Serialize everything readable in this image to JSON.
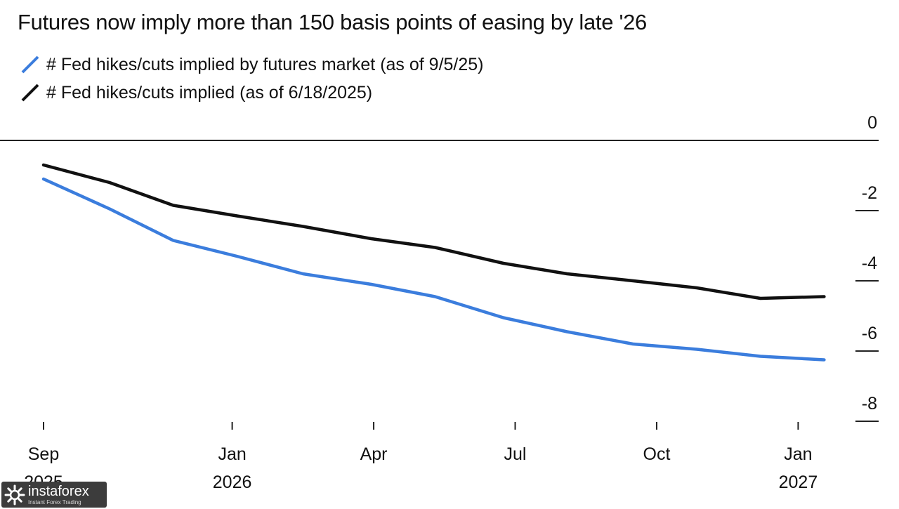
{
  "chart_data": {
    "type": "line",
    "title": "Futures now imply more than 150 basis points of easing by late '26",
    "xlabel": "",
    "ylabel": "",
    "ylim": [
      -8,
      0
    ],
    "yticks": [
      {
        "value": 0,
        "label": "0"
      },
      {
        "value": -2,
        "label": "-2"
      },
      {
        "value": -4,
        "label": "-4"
      },
      {
        "value": -6,
        "label": "-6"
      },
      {
        "value": -8,
        "label": "-8"
      }
    ],
    "x_range": [
      0,
      16.5
    ],
    "xticks": [
      {
        "value": 0,
        "month": "Sep",
        "year": "2025"
      },
      {
        "value": 4,
        "month": "Jan",
        "year": "2026"
      },
      {
        "value": 7,
        "month": "Apr",
        "year": ""
      },
      {
        "value": 10,
        "month": "Jul",
        "year": ""
      },
      {
        "value": 13,
        "month": "Oct",
        "year": ""
      },
      {
        "value": 16,
        "month": "Jan",
        "year": "2027"
      }
    ],
    "series": [
      {
        "name": "# Fed hikes/cuts implied by futures market (as of 9/5/25)",
        "color": "#3b7ddd",
        "points": [
          [
            0,
            -1.1
          ],
          [
            1.4,
            -1.95
          ],
          [
            2.75,
            -2.85
          ],
          [
            4.1,
            -3.3
          ],
          [
            5.5,
            -3.8
          ],
          [
            6.95,
            -4.1
          ],
          [
            8.3,
            -4.45
          ],
          [
            9.75,
            -5.05
          ],
          [
            11.1,
            -5.45
          ],
          [
            12.5,
            -5.8
          ],
          [
            13.85,
            -5.95
          ],
          [
            15.2,
            -6.15
          ],
          [
            16.55,
            -6.25
          ]
        ]
      },
      {
        "name": "# Fed hikes/cuts implied (as of 6/18/2025)",
        "color": "#111111",
        "points": [
          [
            0,
            -0.7
          ],
          [
            1.4,
            -1.2
          ],
          [
            2.75,
            -1.85
          ],
          [
            4.1,
            -2.15
          ],
          [
            5.5,
            -2.45
          ],
          [
            6.95,
            -2.8
          ],
          [
            8.3,
            -3.05
          ],
          [
            9.75,
            -3.5
          ],
          [
            11.1,
            -3.8
          ],
          [
            12.5,
            -4.0
          ],
          [
            13.85,
            -4.2
          ],
          [
            15.2,
            -4.5
          ],
          [
            16.55,
            -4.45
          ]
        ]
      }
    ],
    "legend_position": "top-left"
  },
  "watermark": {
    "brand": "instaforex",
    "tagline": "Instant Forex Trading"
  }
}
